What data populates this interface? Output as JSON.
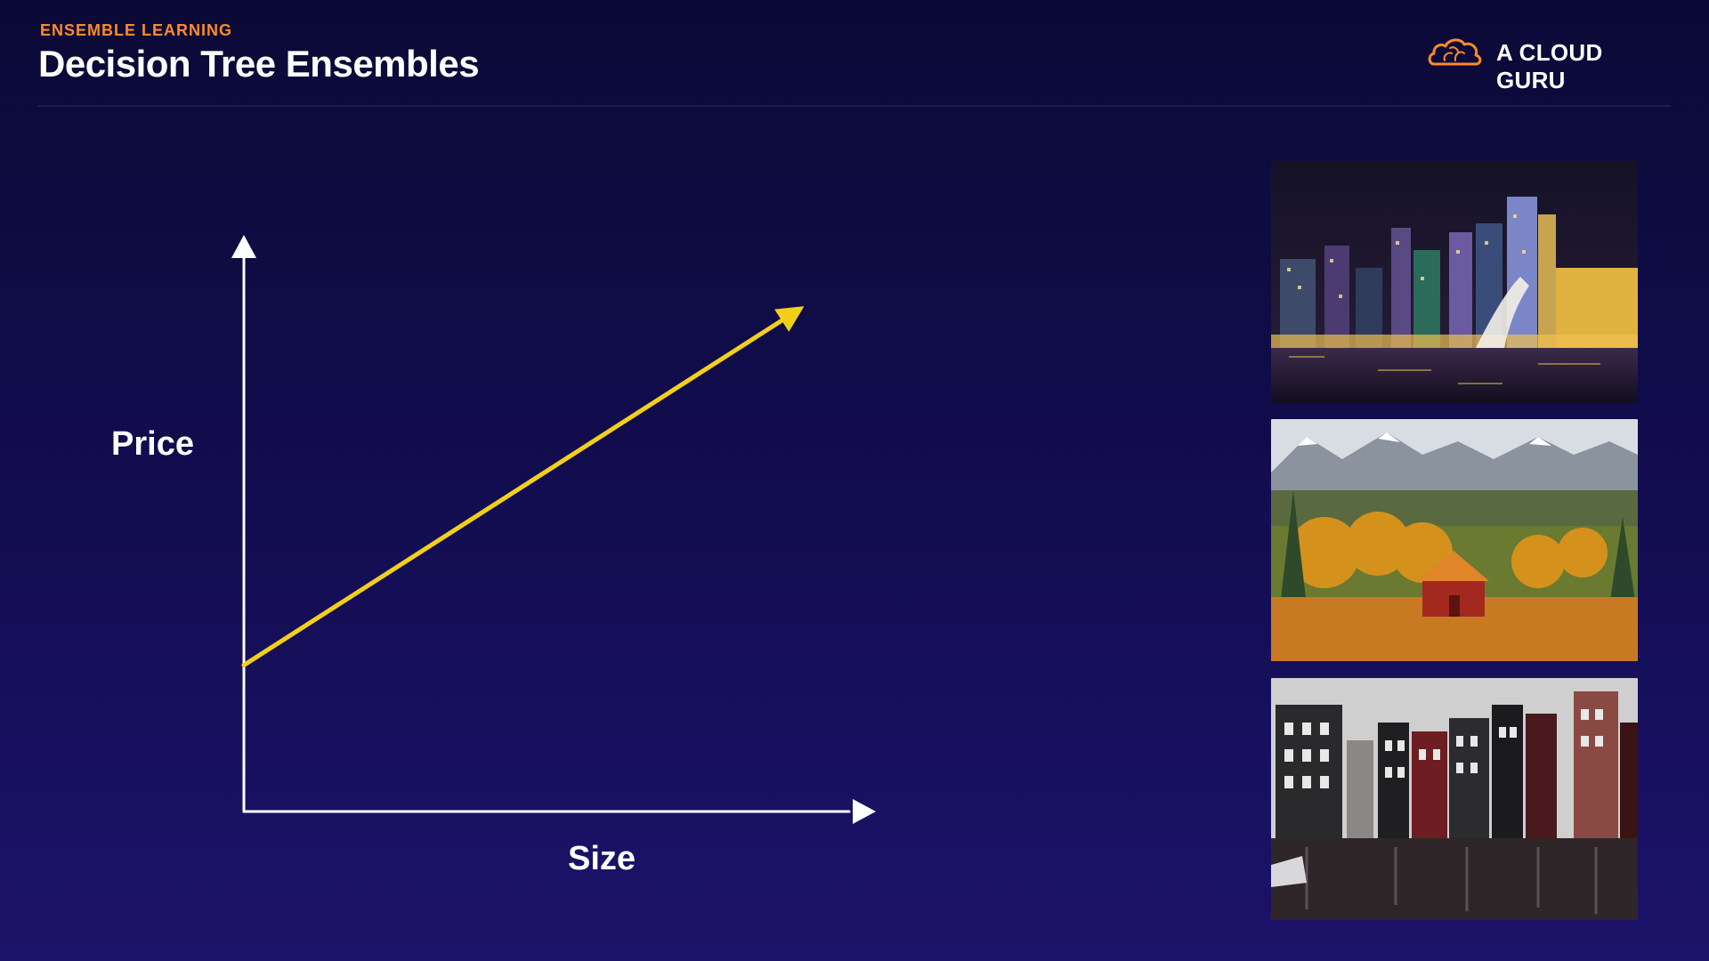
{
  "header": {
    "eyebrow": "ENSEMBLE LEARNING",
    "title": "Decision Tree Ensembles",
    "brand_name": "A CLOUD GURU",
    "brand_icon": "cloud-logo-icon"
  },
  "colors": {
    "background": "#130d52",
    "accent_orange": "#ff8a2a",
    "trend_line": "#f2d019",
    "axes": "#ffffff"
  },
  "chart": {
    "y_label": "Price",
    "x_label": "Size"
  },
  "chart_data": {
    "type": "line",
    "title": "",
    "xlabel": "Size",
    "ylabel": "Price",
    "grid": false,
    "series": [
      {
        "x": [
          0,
          1
        ],
        "values": [
          0.25,
          0.85
        ]
      }
    ]
  },
  "photos": [
    {
      "subject": "city skyline at night with fountain"
    },
    {
      "subject": "mountain landscape with autumn trees and red cabin"
    },
    {
      "subject": "canal houses reflected in water"
    }
  ]
}
